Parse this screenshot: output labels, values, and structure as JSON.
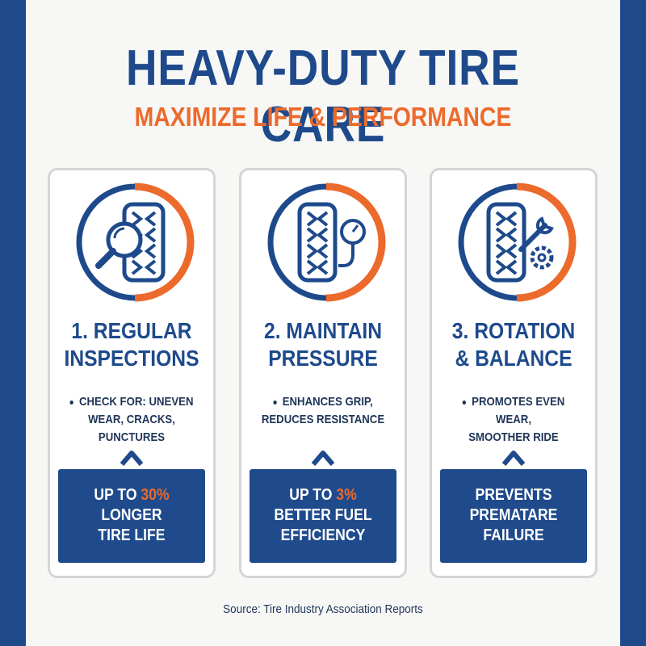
{
  "header": {
    "title": "HEAVY-DUTY TIRE CARE",
    "subtitle": "MAXIMIZE LIFE & PERFORMANCE"
  },
  "colors": {
    "primary": "#1e4a8c",
    "accent": "#ec6a2b",
    "background": "#f7f7f5"
  },
  "cards": [
    {
      "icon": "tire-magnifier-icon",
      "title_line1": "1. REGULAR",
      "title_line2": "INSPECTIONS",
      "bullet_line1": "CHECK FOR: UNEVEN",
      "bullet_line2": "WEAR, CRACKS, PUNCTURES",
      "box_line1_pre": "UP TO ",
      "box_line1_highlight": "30%",
      "box_line2": "LONGER",
      "box_line3": "TIRE LIFE"
    },
    {
      "icon": "tire-pressure-gauge-icon",
      "title_line1": "2. MAINTAIN",
      "title_line2": "PRESSURE",
      "bullet_line1": "ENHANCES GRIP,",
      "bullet_line2": "REDUCES RESISTANCE",
      "box_line1_pre": "UP TO ",
      "box_line1_highlight": "3%",
      "box_line2": "BETTER FUEL",
      "box_line3": "EFFICIENCY"
    },
    {
      "icon": "tire-wrench-gear-icon",
      "title_line1": "3. ROTATION",
      "title_line2": "& BALANCE",
      "bullet_line1": "PROMOTES EVEN WEAR,",
      "bullet_line2": "SMOOTHER RIDE",
      "box_line1": "PREVENTS",
      "box_line2": "PREMATARE",
      "box_line3": "FAILURE"
    }
  ],
  "footer": {
    "source": "Source: Tire Industry Association Reports"
  }
}
